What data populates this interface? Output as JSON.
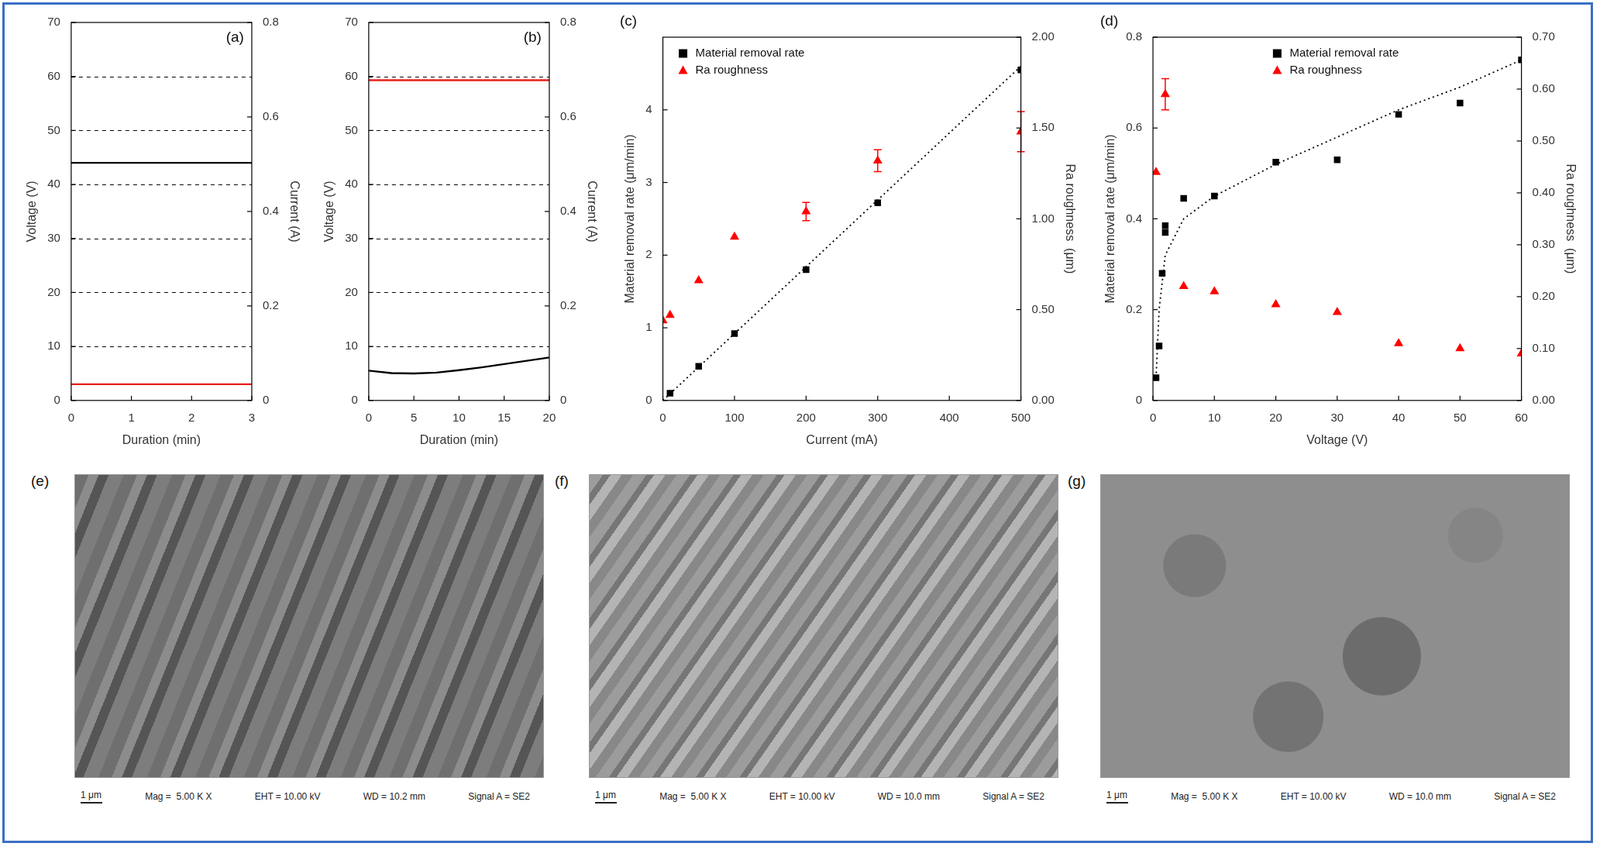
{
  "chart_data": [
    {
      "panel": "(a)",
      "type": "line",
      "xlabel": "Duration (min)",
      "ylabel": "Voltage (V)",
      "y2label": "Current (A)",
      "xlim": [
        0,
        3
      ],
      "xticks": [
        0,
        1,
        2,
        3
      ],
      "ylim": [
        0,
        70
      ],
      "yticks": [
        0,
        10,
        20,
        30,
        40,
        50,
        60,
        70
      ],
      "y2lim": [
        0,
        0.8
      ],
      "y2ticks": [
        0,
        0.2,
        0.4,
        0.6,
        0.8
      ],
      "grid": true,
      "series": [
        {
          "type": "line",
          "color": "#000000",
          "axis": "y2",
          "x": [
            0,
            3
          ],
          "values": [
            0.503,
            0.503
          ]
        },
        {
          "type": "line",
          "color": "#e8201a",
          "x": [
            0,
            3
          ],
          "values": [
            3,
            3
          ]
        }
      ]
    },
    {
      "panel": "(b)",
      "type": "line",
      "xlabel": "Duration (min)",
      "ylabel": "Voltage (V)",
      "y2label": "Current (A)",
      "xlim": [
        0,
        20
      ],
      "xticks": [
        0,
        5,
        10,
        15,
        20
      ],
      "ylim": [
        0,
        70
      ],
      "yticks": [
        0,
        10,
        20,
        30,
        40,
        50,
        60,
        70
      ],
      "y2lim": [
        0,
        0.8
      ],
      "y2ticks": [
        0,
        0.2,
        0.4,
        0.6,
        0.8
      ],
      "grid": true,
      "series": [
        {
          "type": "line",
          "color": "#000000",
          "axis": "y2",
          "x": [
            0,
            2.5,
            5,
            7.5,
            10,
            12.5,
            15,
            17.5,
            20
          ],
          "values": [
            0.063,
            0.058,
            0.057,
            0.059,
            0.064,
            0.07,
            0.077,
            0.084,
            0.091
          ]
        },
        {
          "type": "line",
          "color": "#e8201a",
          "x": [
            0,
            20
          ],
          "values": [
            59.3,
            59.3
          ]
        }
      ]
    },
    {
      "panel": "(c)",
      "type": "scatter",
      "xlabel": "Current (mA)",
      "ylabel": "Material removal rate (μm/min)",
      "y2label": "Ra roughness  (μm)",
      "xlim": [
        0,
        500
      ],
      "xticks": [
        0,
        100,
        200,
        300,
        400,
        500
      ],
      "ylim": [
        0,
        5
      ],
      "yticks": [
        0,
        1,
        2,
        3,
        4
      ],
      "y2lim": [
        0,
        2
      ],
      "y2ticks": [
        {
          "value": 0,
          "label": "0.00"
        },
        {
          "value": 0.5,
          "label": "0.50"
        },
        {
          "value": 1,
          "label": "1.00"
        },
        {
          "value": 1.5,
          "label": "1.50"
        },
        {
          "value": 2,
          "label": "2.00"
        }
      ],
      "grid": false,
      "legend": "upper left",
      "series": [
        {
          "type": "line",
          "line_style": "dotted",
          "color": "#000000",
          "x": [
            0,
            500
          ],
          "values": [
            0,
            4.6
          ]
        },
        {
          "name": "Material removal rate",
          "type": "scatter",
          "marker": "square",
          "color": "#000000",
          "x": [
            10,
            50,
            100,
            200,
            300,
            500
          ],
          "values": [
            0.1,
            0.47,
            0.92,
            1.8,
            2.72,
            4.55
          ]
        },
        {
          "name": "Ra roughness",
          "type": "scatter",
          "marker": "triangle",
          "color": "#ff0000",
          "axis": "y2",
          "x": [
            0,
            10,
            50,
            100,
            200,
            300,
            500
          ],
          "values": [
            0.44,
            0.47,
            0.66,
            0.9,
            1.04,
            1.32,
            1.48
          ],
          "errors": [
            null,
            null,
            null,
            null,
            0.05,
            0.06,
            0.11
          ]
        }
      ]
    },
    {
      "panel": "(d)",
      "type": "scatter",
      "xlabel": "Voltage (V)",
      "ylabel": "Material removal rate (μm/min)",
      "y2label": "Ra roughness  (μm)",
      "xlim": [
        0,
        60
      ],
      "xticks": [
        0,
        10,
        20,
        30,
        40,
        50,
        60
      ],
      "ylim": [
        0,
        0.8
      ],
      "yticks": [
        0,
        0.2,
        0.4,
        0.6,
        0.8
      ],
      "y2lim": [
        0,
        0.7
      ],
      "y2ticks": [
        {
          "value": 0,
          "label": "0.00"
        },
        {
          "value": 0.1,
          "label": "0.10"
        },
        {
          "value": 0.2,
          "label": "0.20"
        },
        {
          "value": 0.3,
          "label": "0.30"
        },
        {
          "value": 0.4,
          "label": "0.40"
        },
        {
          "value": 0.5,
          "label": "0.50"
        },
        {
          "value": 0.6,
          "label": "0.60"
        },
        {
          "value": 0.7,
          "label": "0.70"
        }
      ],
      "grid": false,
      "legend": "upper center",
      "series": [
        {
          "type": "line",
          "line_style": "dotted",
          "color": "#000000",
          "x": [
            0.5,
            1,
            2,
            5,
            10,
            20,
            30,
            40,
            50,
            60
          ],
          "values": [
            0.05,
            0.2,
            0.32,
            0.4,
            0.45,
            0.52,
            0.58,
            0.64,
            0.69,
            0.75
          ]
        },
        {
          "name": "Material removal rate",
          "type": "scatter",
          "marker": "square",
          "color": "#000000",
          "x": [
            0.5,
            1,
            1.5,
            2,
            2,
            5,
            10,
            20,
            30,
            40,
            50,
            60
          ],
          "values": [
            0.05,
            0.12,
            0.28,
            0.37,
            0.385,
            0.445,
            0.45,
            0.525,
            0.53,
            0.63,
            0.655,
            0.75
          ]
        },
        {
          "name": "Ra roughness",
          "type": "scatter",
          "marker": "triangle",
          "color": "#ff0000",
          "axis": "y2",
          "x": [
            0.5,
            2,
            5,
            10,
            20,
            30,
            40,
            50,
            60
          ],
          "values": [
            0.44,
            0.59,
            0.22,
            0.21,
            0.185,
            0.17,
            0.11,
            0.1,
            0.09
          ],
          "errors": [
            null,
            0.03,
            null,
            null,
            null,
            null,
            null,
            null,
            null
          ]
        }
      ]
    }
  ],
  "images": [
    {
      "panel": "(e)",
      "scale_bar": "1 μm",
      "info": [
        "Mag =  5.00 K X",
        "EHT = 10.00 kV",
        "WD = 10.2 mm",
        "Signal A = SE2"
      ]
    },
    {
      "panel": "(f)",
      "scale_bar": "1 μm",
      "info": [
        "Mag =  5.00 K X",
        "EHT = 10.00 kV",
        "WD = 10.0 mm",
        "Signal A = SE2"
      ]
    },
    {
      "panel": "(g)",
      "scale_bar": "1 μm",
      "info": [
        "Mag =  5.00 K X",
        "EHT = 10.00 kV",
        "WD = 10.0 mm",
        "Signal A = SE2"
      ]
    }
  ]
}
